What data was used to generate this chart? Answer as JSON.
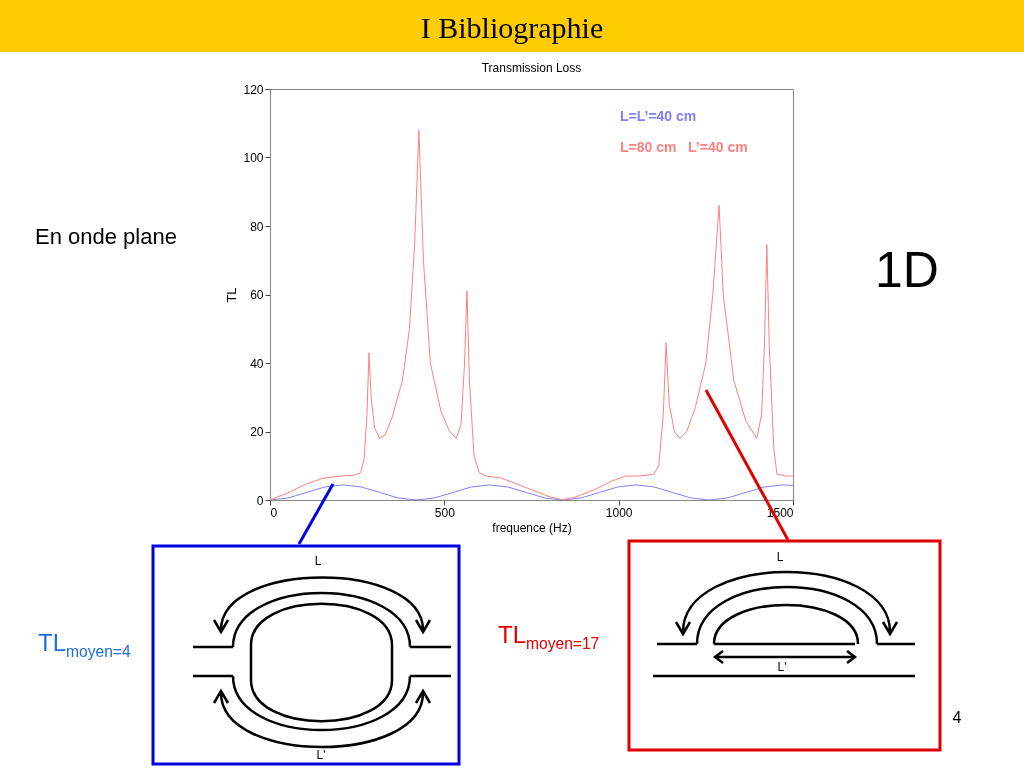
{
  "chart_data": {
    "type": "line",
    "title": "Transmission Loss",
    "xlabel": "frequence (Hz)",
    "ylabel": "TL",
    "xlim": [
      0,
      1500
    ],
    "xticks": [
      0,
      500,
      1000,
      1500
    ],
    "ylim": [
      0,
      120
    ],
    "yticks": [
      0,
      20,
      40,
      60,
      80,
      100,
      120
    ],
    "legend": "top right",
    "annotations": [
      "I Bibliographie",
      "En onde plane",
      "1D",
      "TL$_{moyen=4}$",
      "TL$_{moyen=17}$",
      "L",
      "L'",
      "L",
      "L'",
      "4"
    ],
    "series": [
      {
        "name": "L=L’=40 cm",
        "color": "#7f7fff",
        "x": [
          0,
          52,
          105,
          157,
          210,
          262,
          315,
          367,
          420,
          472,
          525,
          577,
          630,
          682,
          735,
          787,
          840,
          892,
          945,
          997,
          1050,
          1102,
          1155,
          1207,
          1260,
          1312,
          1365,
          1417,
          1470,
          1500
        ],
        "values": [
          0,
          0.6,
          2.2,
          3.8,
          4.4,
          3.8,
          2.2,
          0.6,
          0,
          0.6,
          2.2,
          3.8,
          4.4,
          3.8,
          2.2,
          0.6,
          0,
          0.6,
          2.2,
          3.8,
          4.4,
          3.8,
          2.2,
          0.6,
          0,
          0.6,
          2.2,
          3.8,
          4.4,
          4.3
        ]
      },
      {
        "name": "L=80 cm   L’=40 cm",
        "color": "#ff8080",
        "x": [
          0,
          50,
          100,
          150,
          200,
          240,
          260,
          270,
          278,
          284,
          290,
          300,
          315,
          330,
          350,
          380,
          400,
          415,
          427,
          440,
          460,
          490,
          515,
          534,
          548,
          558,
          565,
          572,
          585,
          600,
          620,
          660,
          700,
          750,
          800,
          840,
          880,
          930,
          980,
          1020,
          1060,
          1100,
          1115,
          1128,
          1136,
          1145,
          1160,
          1176,
          1195,
          1220,
          1250,
          1270,
          1288,
          1300,
          1330,
          1365,
          1396,
          1410,
          1418,
          1425,
          1432,
          1445,
          1454,
          1480,
          1500
        ],
        "values": [
          0,
          2,
          4.5,
          6.3,
          7,
          7.2,
          8,
          12,
          25,
          43,
          30,
          21,
          18,
          19,
          24,
          35,
          50,
          75,
          108,
          70,
          40,
          26,
          20,
          18,
          22,
          40,
          61,
          35,
          13,
          8,
          7,
          6.5,
          5,
          3,
          1,
          0,
          1,
          3,
          5.5,
          7,
          7,
          7.5,
          10,
          25,
          46,
          28,
          20,
          18,
          20,
          27,
          40,
          60,
          86,
          60,
          35,
          23,
          18,
          25,
          45,
          74.5,
          45,
          15,
          7.5,
          7,
          7
        ]
      }
    ]
  }
}
